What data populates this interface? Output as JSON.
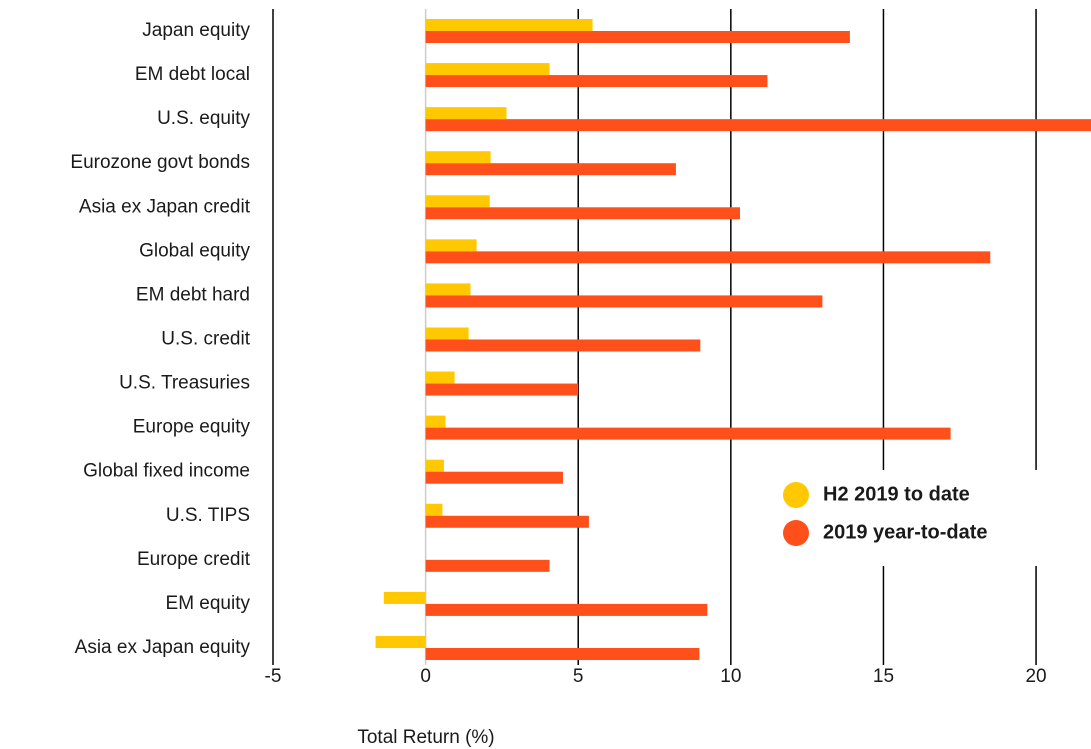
{
  "chart_data": {
    "type": "barh",
    "xlabel": "Total Return (%)",
    "categories": [
      "Japan equity",
      "EM debt local",
      "U.S. equity",
      "Eurozone govt bonds",
      "Asia ex Japan credit",
      "Global equity",
      "EM debt hard",
      "U.S. credit",
      "U.S. Treasuries",
      "Europe equity",
      "Global fixed income",
      "U.S. TIPS",
      "Europe credit",
      "EM equity",
      "Asia ex Japan equity"
    ],
    "series": [
      {
        "name": "H2 2019 to date",
        "color": "#ffc800",
        "values": [
          5.47,
          4.06,
          2.65,
          2.13,
          2.1,
          1.67,
          1.47,
          1.41,
          0.95,
          0.65,
          0.6,
          0.55,
          0,
          -1.37,
          -1.64
        ]
      },
      {
        "name": "2019 year-to-date",
        "color": "#ff4f1a",
        "values": [
          13.9,
          11.2,
          21.8,
          8.2,
          10.3,
          18.5,
          13.0,
          9.0,
          5.0,
          17.2,
          4.5,
          5.35,
          4.06,
          9.23,
          8.97
        ]
      }
    ],
    "xlim": [
      -5,
      21.8
    ],
    "xticks": [
      -5,
      0,
      5,
      10,
      15,
      20
    ],
    "grid": true
  }
}
